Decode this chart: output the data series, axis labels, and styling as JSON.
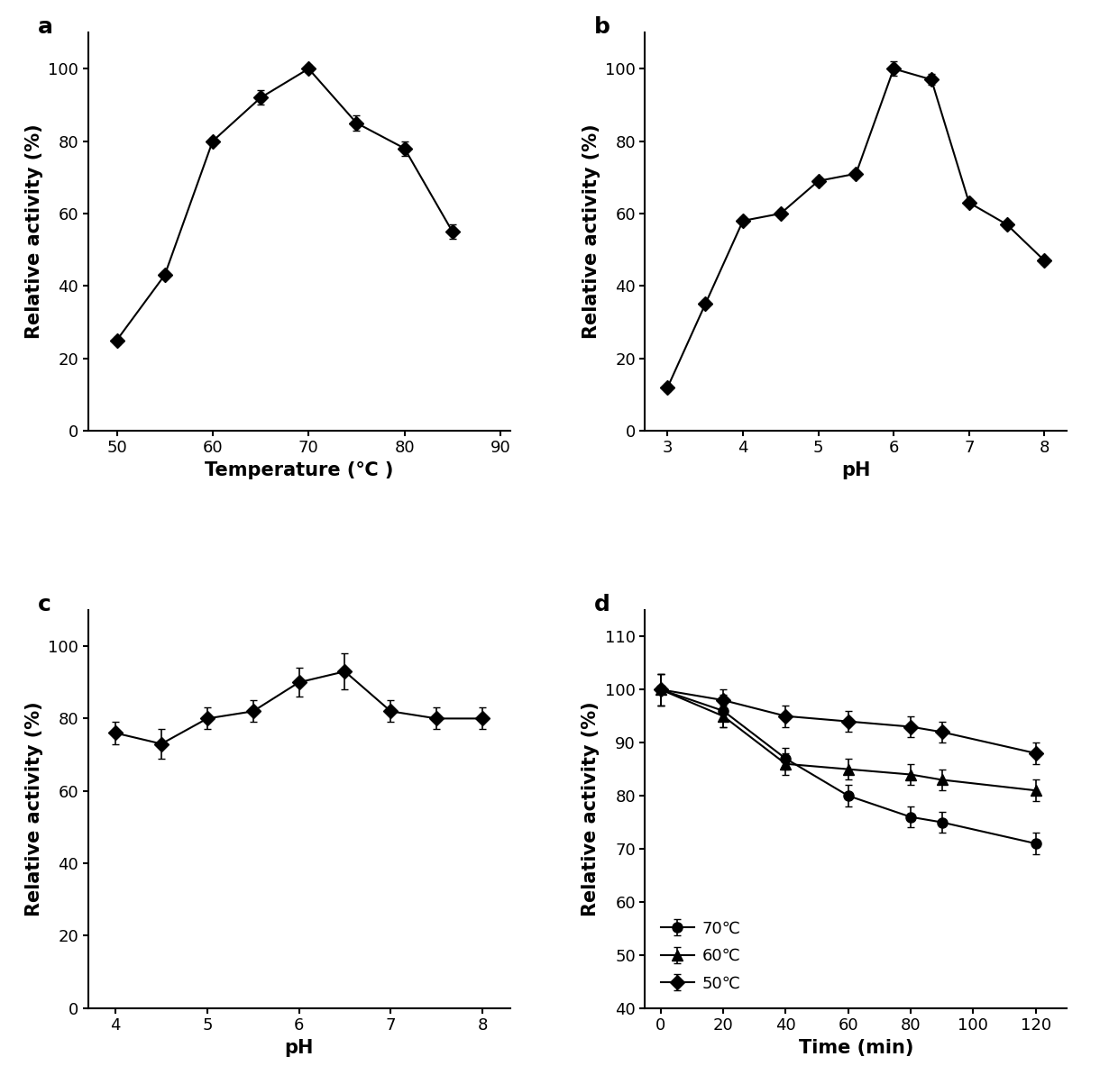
{
  "panel_a": {
    "x": [
      50,
      55,
      60,
      65,
      70,
      75,
      80,
      85
    ],
    "y": [
      25,
      43,
      80,
      92,
      100,
      85,
      78,
      55
    ],
    "yerr": [
      1.0,
      1.0,
      1.0,
      2.0,
      1.0,
      2.0,
      2.0,
      2.0
    ],
    "xlabel": "Temperature (℃ )",
    "ylabel": "Relative activity (%)",
    "xlim": [
      47,
      91
    ],
    "ylim": [
      0,
      110
    ],
    "xticks": [
      50,
      60,
      70,
      80,
      90
    ],
    "yticks": [
      0,
      20,
      40,
      60,
      80,
      100
    ],
    "label": "a"
  },
  "panel_b": {
    "x": [
      3.0,
      3.5,
      4.0,
      4.5,
      5.0,
      5.5,
      6.0,
      6.5,
      7.0,
      7.5,
      8.0
    ],
    "y": [
      12,
      35,
      58,
      60,
      69,
      71,
      100,
      97,
      63,
      57,
      47
    ],
    "yerr": [
      1.0,
      1.0,
      1.0,
      1.0,
      1.0,
      1.0,
      2.0,
      1.5,
      1.0,
      1.0,
      1.0
    ],
    "xlabel": "pH",
    "ylabel": "Relative activity (%)",
    "xlim": [
      2.7,
      8.3
    ],
    "ylim": [
      0,
      110
    ],
    "xticks": [
      3,
      4,
      5,
      6,
      7,
      8
    ],
    "yticks": [
      0,
      20,
      40,
      60,
      80,
      100
    ],
    "label": "b"
  },
  "panel_c": {
    "x": [
      4.0,
      4.5,
      5.0,
      5.5,
      6.0,
      6.5,
      7.0,
      7.5,
      8.0
    ],
    "y": [
      76,
      73,
      80,
      82,
      90,
      93,
      82,
      80,
      80
    ],
    "yerr": [
      3.0,
      4.0,
      3.0,
      3.0,
      4.0,
      5.0,
      3.0,
      3.0,
      3.0
    ],
    "xlabel": "pH",
    "ylabel": "Relative activity (%)",
    "xlim": [
      3.7,
      8.3
    ],
    "ylim": [
      0,
      110
    ],
    "xticks": [
      4,
      5,
      6,
      7,
      8
    ],
    "yticks": [
      0,
      20,
      40,
      60,
      80,
      100
    ],
    "label": "c"
  },
  "panel_d": {
    "x": [
      0,
      20,
      40,
      60,
      80,
      90,
      120
    ],
    "series_70": {
      "y": [
        100,
        96,
        87,
        80,
        76,
        75,
        71
      ],
      "yerr": [
        3.0,
        3.0,
        2.0,
        2.0,
        2.0,
        2.0,
        2.0
      ],
      "marker": "o",
      "label": "70℃"
    },
    "series_60": {
      "y": [
        100,
        95,
        86,
        85,
        84,
        83,
        81
      ],
      "yerr": [
        3.0,
        2.0,
        2.0,
        2.0,
        2.0,
        2.0,
        2.0
      ],
      "marker": "^",
      "label": "60℃"
    },
    "series_50": {
      "y": [
        100,
        98,
        95,
        94,
        93,
        92,
        88
      ],
      "yerr": [
        3.0,
        2.0,
        2.0,
        2.0,
        2.0,
        2.0,
        2.0
      ],
      "marker": "D",
      "label": "50℃"
    },
    "xlabel": "Time (min)",
    "ylabel": "Relative activity (%)",
    "xlim": [
      -5,
      130
    ],
    "ylim": [
      40,
      115
    ],
    "xticks": [
      0,
      20,
      40,
      60,
      80,
      100,
      120
    ],
    "yticks": [
      40,
      50,
      60,
      70,
      80,
      90,
      100,
      110
    ],
    "label": "d"
  },
  "bg_color": "#ffffff",
  "line_color": "#000000",
  "marker_size": 8,
  "line_width": 1.5,
  "cap_size": 3,
  "tick_label_size": 13,
  "axis_label_size": 15,
  "panel_label_size": 18
}
